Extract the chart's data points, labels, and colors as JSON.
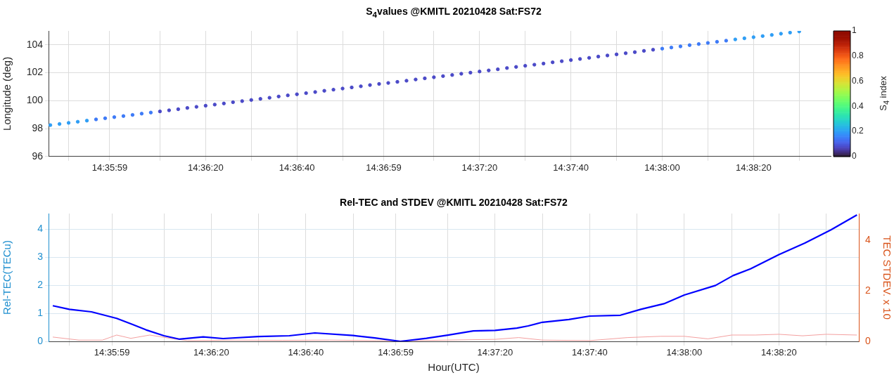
{
  "chart_data": [
    {
      "type": "scatter",
      "title": "S$_{4}$values @KMITL 20210428 Sat:FS72",
      "ylabel": "Longitude (deg)",
      "clabel": "S$_{4}$ index",
      "marker": "circle",
      "grid": true,
      "xlim": [
        14.596,
        14.643583
      ],
      "ylim": [
        96,
        105
      ],
      "yticks": [
        96,
        98,
        100,
        102,
        104
      ],
      "clim": [
        0,
        1
      ],
      "cticks": [
        0,
        0.2,
        0.4,
        0.6,
        0.8,
        1
      ],
      "xticks": [
        {
          "value": 14.597222,
          "label": null
        },
        {
          "value": 14.599722,
          "label": "14:35:59"
        },
        {
          "value": 14.602778,
          "label": null
        },
        {
          "value": 14.605556,
          "label": "14:36:20"
        },
        {
          "value": 14.608333,
          "label": null
        },
        {
          "value": 14.611111,
          "label": "14:36:40"
        },
        {
          "value": 14.613889,
          "label": null
        },
        {
          "value": 14.616389,
          "label": "14:36:59"
        },
        {
          "value": 14.619444,
          "label": null
        },
        {
          "value": 14.622222,
          "label": "14:37:20"
        },
        {
          "value": 14.625,
          "label": null
        },
        {
          "value": 14.627778,
          "label": "14:37:40"
        },
        {
          "value": 14.630556,
          "label": null
        },
        {
          "value": 14.633333,
          "label": "14:38:00"
        },
        {
          "value": 14.636111,
          "label": null
        },
        {
          "value": 14.638889,
          "label": "14:38:20"
        },
        {
          "value": 14.641667,
          "label": null
        }
      ],
      "x": [
        14.596111,
        14.596667,
        14.597222,
        14.597778,
        14.598333,
        14.598889,
        14.599444,
        14.6,
        14.600556,
        14.601111,
        14.601667,
        14.602222,
        14.602778,
        14.603333,
        14.603889,
        14.604444,
        14.605,
        14.605556,
        14.606111,
        14.606667,
        14.607222,
        14.607778,
        14.608333,
        14.608889,
        14.609444,
        14.61,
        14.610556,
        14.611111,
        14.611667,
        14.612222,
        14.612778,
        14.613333,
        14.613889,
        14.614444,
        14.615,
        14.615556,
        14.616111,
        14.616667,
        14.617222,
        14.617778,
        14.618333,
        14.618889,
        14.619444,
        14.62,
        14.620556,
        14.621111,
        14.621667,
        14.622222,
        14.622778,
        14.623333,
        14.623889,
        14.624444,
        14.625,
        14.625556,
        14.626111,
        14.626667,
        14.627222,
        14.627778,
        14.628333,
        14.628889,
        14.629444,
        14.63,
        14.630556,
        14.631111,
        14.631667,
        14.632222,
        14.632778,
        14.633333,
        14.633889,
        14.634444,
        14.635,
        14.635556,
        14.636111,
        14.636667,
        14.637222,
        14.637778,
        14.638333,
        14.638889,
        14.639444,
        14.64,
        14.640556,
        14.641111,
        14.641667
      ],
      "values": [
        98.25,
        98.33,
        98.41,
        98.49,
        98.57,
        98.66,
        98.74,
        98.82,
        98.9,
        98.98,
        99.07,
        99.15,
        99.23,
        99.31,
        99.39,
        99.48,
        99.56,
        99.64,
        99.72,
        99.8,
        99.89,
        99.97,
        100.05,
        100.13,
        100.21,
        100.3,
        100.38,
        100.46,
        100.54,
        100.62,
        100.71,
        100.79,
        100.87,
        100.95,
        101.03,
        101.12,
        101.2,
        101.27,
        101.35,
        101.43,
        101.52,
        101.6,
        101.68,
        101.76,
        101.84,
        101.93,
        102.01,
        102.09,
        102.17,
        102.25,
        102.34,
        102.42,
        102.5,
        102.58,
        102.66,
        102.75,
        102.83,
        102.91,
        102.99,
        103.07,
        103.16,
        103.24,
        103.32,
        103.4,
        103.48,
        103.57,
        103.65,
        103.73,
        103.81,
        103.89,
        103.98,
        104.06,
        104.14,
        104.22,
        104.3,
        104.39,
        104.47,
        104.55,
        104.63,
        104.71,
        104.8,
        104.88,
        104.96
      ],
      "cvalues": [
        0.2,
        0.2,
        0.2,
        0.2,
        0.2,
        0.15,
        0.15,
        0.15,
        0.15,
        0.15,
        0.15,
        0.15,
        0.08,
        0.08,
        0.08,
        0.08,
        0.08,
        0.08,
        0.08,
        0.08,
        0.08,
        0.08,
        0.08,
        0.08,
        0.08,
        0.08,
        0.08,
        0.08,
        0.08,
        0.08,
        0.08,
        0.08,
        0.08,
        0.08,
        0.08,
        0.08,
        0.08,
        0.08,
        0.08,
        0.08,
        0.08,
        0.08,
        0.08,
        0.08,
        0.08,
        0.08,
        0.08,
        0.08,
        0.08,
        0.08,
        0.08,
        0.08,
        0.08,
        0.08,
        0.08,
        0.08,
        0.08,
        0.08,
        0.08,
        0.08,
        0.08,
        0.08,
        0.08,
        0.08,
        0.08,
        0.08,
        0.08,
        0.15,
        0.15,
        0.15,
        0.15,
        0.15,
        0.15,
        0.15,
        0.15,
        0.2,
        0.2,
        0.2,
        0.2,
        0.2,
        0.2,
        0.2,
        0.2
      ]
    },
    {
      "type": "line",
      "title": "Rel-TEC and STDEV @KMITL 20210428 Sat:FS72",
      "xlabel": "Hour(UTC)",
      "ylabel": "Rel-TEC(TECu)",
      "y2label": "TEC STDEV. x 10",
      "grid": true,
      "xlim": [
        14.596,
        14.643583
      ],
      "ylim": [
        0,
        4.55
      ],
      "yticks": [
        0,
        1,
        2,
        3,
        4
      ],
      "y2lim": [
        0,
        5.05
      ],
      "y2ticks": [
        0,
        2,
        4
      ],
      "xticks": [
        {
          "value": 14.597222,
          "label": null
        },
        {
          "value": 14.599722,
          "label": "14:35:59"
        },
        {
          "value": 14.602778,
          "label": null
        },
        {
          "value": 14.605556,
          "label": "14:36:20"
        },
        {
          "value": 14.608333,
          "label": null
        },
        {
          "value": 14.611111,
          "label": "14:36:40"
        },
        {
          "value": 14.613889,
          "label": null
        },
        {
          "value": 14.616389,
          "label": "14:36:59"
        },
        {
          "value": 14.619444,
          "label": null
        },
        {
          "value": 14.622222,
          "label": "14:37:20"
        },
        {
          "value": 14.625,
          "label": null
        },
        {
          "value": 14.627778,
          "label": "14:37:40"
        },
        {
          "value": 14.630556,
          "label": null
        },
        {
          "value": 14.633333,
          "label": "14:38:00"
        },
        {
          "value": 14.636111,
          "label": null
        },
        {
          "value": 14.638889,
          "label": "14:38:20"
        },
        {
          "value": 14.641667,
          "label": null
        }
      ],
      "series": [
        {
          "color": "#0000ff",
          "x": [
            14.59625,
            14.597222,
            14.598528,
            14.6,
            14.600889,
            14.601722,
            14.602778,
            14.603667,
            14.605083,
            14.60625,
            14.608333,
            14.610139,
            14.611639,
            14.613889,
            14.615167,
            14.616667,
            14.618194,
            14.619444,
            14.620944,
            14.622222,
            14.6235,
            14.624167,
            14.625,
            14.626556,
            14.627778,
            14.629583,
            14.630778,
            14.632139,
            14.633333,
            14.635167,
            14.636194,
            14.637222,
            14.638889,
            14.640417,
            14.641944,
            14.643472
          ],
          "values": [
            1.27,
            1.14,
            1.05,
            0.82,
            0.61,
            0.41,
            0.2,
            0.08,
            0.16,
            0.1,
            0.17,
            0.2,
            0.3,
            0.21,
            0.12,
            0.0,
            0.11,
            0.22,
            0.37,
            0.39,
            0.47,
            0.55,
            0.68,
            0.78,
            0.9,
            0.93,
            1.14,
            1.34,
            1.65,
            1.99,
            2.34,
            2.58,
            3.09,
            3.5,
            3.97,
            4.5
          ]
        },
        {
          "color": "#f4a0a0",
          "axis": "y2",
          "x": [
            14.59625,
            14.597778,
            14.599167,
            14.6,
            14.600833,
            14.601944,
            14.603333,
            14.604167,
            14.606944,
            14.609722,
            14.6125,
            14.615278,
            14.616667,
            14.619444,
            14.622222,
            14.623611,
            14.625,
            14.627778,
            14.63,
            14.631944,
            14.633333,
            14.634722,
            14.636111,
            14.6375,
            14.638889,
            14.640278,
            14.641667,
            14.643472
          ],
          "values": [
            0.17,
            0.05,
            0.05,
            0.25,
            0.12,
            0.25,
            0.1,
            0.03,
            0.05,
            0.04,
            0.05,
            0.03,
            0.02,
            0.05,
            0.08,
            0.15,
            0.05,
            0.03,
            0.15,
            0.2,
            0.2,
            0.1,
            0.25,
            0.25,
            0.28,
            0.22,
            0.28,
            0.25
          ]
        }
      ]
    }
  ]
}
